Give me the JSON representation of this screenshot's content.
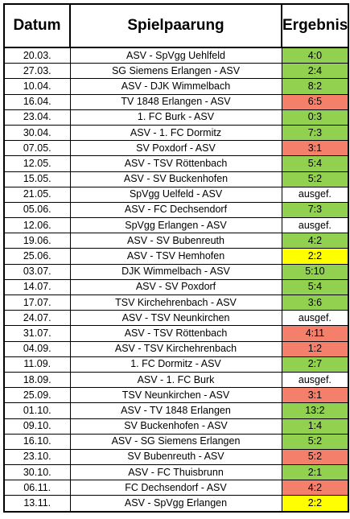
{
  "headers": {
    "date": "Datum",
    "match": "Spielpaarung",
    "result": "Ergebnis"
  },
  "status_colors": {
    "win": "#92d050",
    "loss": "#f4806b",
    "draw": "#ffff00",
    "none": "#ffffff"
  },
  "rows": [
    {
      "date": "20.03.",
      "match": "ASV - SpVgg Uehlfeld",
      "result": "4:0",
      "status": "win"
    },
    {
      "date": "27.03.",
      "match": "SG Siemens Erlangen - ASV",
      "result": "2:4",
      "status": "win"
    },
    {
      "date": "10.04.",
      "match": "ASV - DJK Wimmelbach",
      "result": "8:2",
      "status": "win"
    },
    {
      "date": "16.04.",
      "match": "TV 1848 Erlangen - ASV",
      "result": "6:5",
      "status": "loss"
    },
    {
      "date": "23.04.",
      "match": "1. FC Burk - ASV",
      "result": "0:3",
      "status": "win"
    },
    {
      "date": "30.04.",
      "match": "ASV - 1. FC Dormitz",
      "result": "7:3",
      "status": "win"
    },
    {
      "date": "07.05.",
      "match": "SV Poxdorf - ASV",
      "result": "3:1",
      "status": "loss"
    },
    {
      "date": "12.05.",
      "match": "ASV - TSV Röttenbach",
      "result": "5:4",
      "status": "win"
    },
    {
      "date": "15.05.",
      "match": "ASV - SV Buckenhofen",
      "result": "5:2",
      "status": "win"
    },
    {
      "date": "21.05.",
      "match": "SpVgg Uelfeld - ASV",
      "result": "ausgef.",
      "status": "none"
    },
    {
      "date": "05.06.",
      "match": "ASV - FC Dechsendorf",
      "result": "7:3",
      "status": "win"
    },
    {
      "date": "12.06.",
      "match": "SpVgg Erlangen - ASV",
      "result": "ausgef.",
      "status": "none"
    },
    {
      "date": "19.06.",
      "match": "ASV - SV Bubenreuth",
      "result": "4:2",
      "status": "win"
    },
    {
      "date": "25.06.",
      "match": "ASV - TSV Hemhofen",
      "result": "2:2",
      "status": "draw"
    },
    {
      "date": "03.07.",
      "match": "DJK Wimmelbach - ASV",
      "result": "5:10",
      "status": "win"
    },
    {
      "date": "14.07.",
      "match": "ASV - SV Poxdorf",
      "result": "5:4",
      "status": "win"
    },
    {
      "date": "17.07.",
      "match": "TSV Kirchehrenbach - ASV",
      "result": "3:6",
      "status": "win"
    },
    {
      "date": "24.07.",
      "match": "ASV - TSV Neunkirchen",
      "result": "ausgef.",
      "status": "none"
    },
    {
      "date": "31.07.",
      "match": "ASV - TSV Röttenbach",
      "result": "4:11",
      "status": "loss"
    },
    {
      "date": "04.09.",
      "match": "ASV - TSV Kirchehrenbach",
      "result": "1:2",
      "status": "loss"
    },
    {
      "date": "11.09.",
      "match": "1. FC Dormitz - ASV",
      "result": "2:7",
      "status": "win"
    },
    {
      "date": "18.09.",
      "match": "ASV - 1. FC Burk",
      "result": "ausgef.",
      "status": "none"
    },
    {
      "date": "25.09.",
      "match": "TSV Neunkirchen - ASV",
      "result": "3:1",
      "status": "loss"
    },
    {
      "date": "01.10.",
      "match": "ASV - TV 1848 Erlangen",
      "result": "13:2",
      "status": "win"
    },
    {
      "date": "09.10.",
      "match": "SV Buckenhofen - ASV",
      "result": "1:4",
      "status": "win"
    },
    {
      "date": "16.10.",
      "match": "ASV - SG Siemens Erlangen",
      "result": "5:2",
      "status": "win"
    },
    {
      "date": "23.10.",
      "match": "SV Bubenreuth - ASV",
      "result": "5:2",
      "status": "loss"
    },
    {
      "date": "30.10.",
      "match": "ASV - FC Thuisbrunn",
      "result": "2:1",
      "status": "win"
    },
    {
      "date": "06.11.",
      "match": "FC Dechsendorf - ASV",
      "result": "4:2",
      "status": "loss"
    },
    {
      "date": "13.11.",
      "match": "ASV - SpVgg Erlangen",
      "result": "2:2",
      "status": "draw"
    }
  ]
}
